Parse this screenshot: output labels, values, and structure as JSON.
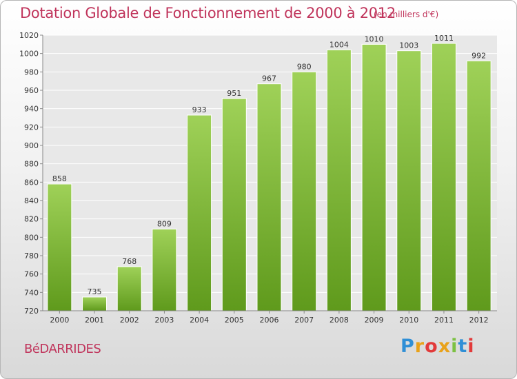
{
  "header": {
    "title": "Dotation Globale de Fonctionnement de 2000 à 2012",
    "unit": "(en milliers d'€)"
  },
  "footer": {
    "commune": "BéDARRIDES",
    "logo_text": "Proxiti"
  },
  "colors": {
    "title": "#c0345b",
    "bar_top": "#9fd158",
    "bar_bottom": "#5f9a1c",
    "grid": "#ffffff",
    "plot_background": "#e8e8e8"
  },
  "chart_data": {
    "type": "bar",
    "title": "Dotation Globale de Fonctionnement de 2000 à 2012",
    "subtitle": "(en milliers d'€)",
    "xlabel": "",
    "ylabel": "",
    "categories": [
      "2000",
      "2001",
      "2002",
      "2003",
      "2004",
      "2005",
      "2006",
      "2007",
      "2008",
      "2009",
      "2010",
      "2011",
      "2012"
    ],
    "values": [
      858,
      735,
      768,
      809,
      933,
      951,
      967,
      980,
      1004,
      1010,
      1003,
      1011,
      992
    ],
    "value_labels": [
      "858",
      "735",
      "768",
      "809",
      "933",
      "951",
      "967",
      "980",
      "1004",
      "1010",
      "1003",
      "1011",
      "992"
    ],
    "ylim": [
      720,
      1020
    ],
    "yticks": [
      720,
      740,
      760,
      780,
      800,
      820,
      840,
      860,
      880,
      900,
      920,
      940,
      960,
      980,
      1000,
      1020
    ],
    "ytick_labels": [
      "720",
      "740",
      "760",
      "780",
      "800",
      "820",
      "840",
      "860",
      "880",
      "900",
      "920",
      "940",
      "960",
      "980",
      "1000",
      "1020"
    ],
    "grid": true,
    "legend": "none"
  }
}
